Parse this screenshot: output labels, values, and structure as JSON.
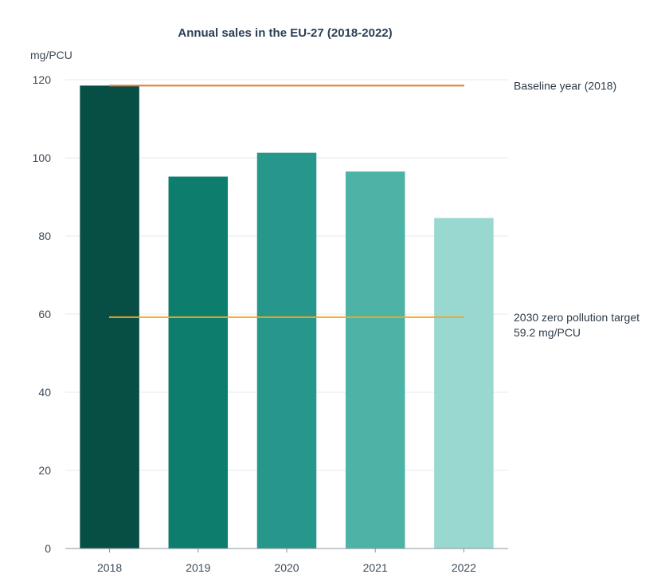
{
  "chart_data": {
    "type": "bar",
    "title": "Annual sales in the EU-27 (2018-2022)",
    "ylabel": "mg/PCU",
    "xlabel": "",
    "categories": [
      "2018",
      "2019",
      "2020",
      "2021",
      "2022"
    ],
    "values": [
      118.5,
      95.2,
      101.3,
      96.5,
      84.6
    ],
    "ylim": [
      0,
      120
    ],
    "yticks": [
      0,
      20,
      40,
      60,
      80,
      100,
      120
    ],
    "grid": true,
    "bar_colors": [
      "#074f45",
      "#0d7e6e",
      "#26978a",
      "#4eb3a7",
      "#98d8d1"
    ],
    "reference_lines": [
      {
        "value": 118.5,
        "label_lines": [
          "Baseline year (2018)"
        ],
        "color": "#e07a3a"
      },
      {
        "value": 59.2,
        "label_lines": [
          "2030 zero pollution target",
          "59.2 mg/PCU"
        ],
        "color": "#f5a623"
      }
    ]
  }
}
